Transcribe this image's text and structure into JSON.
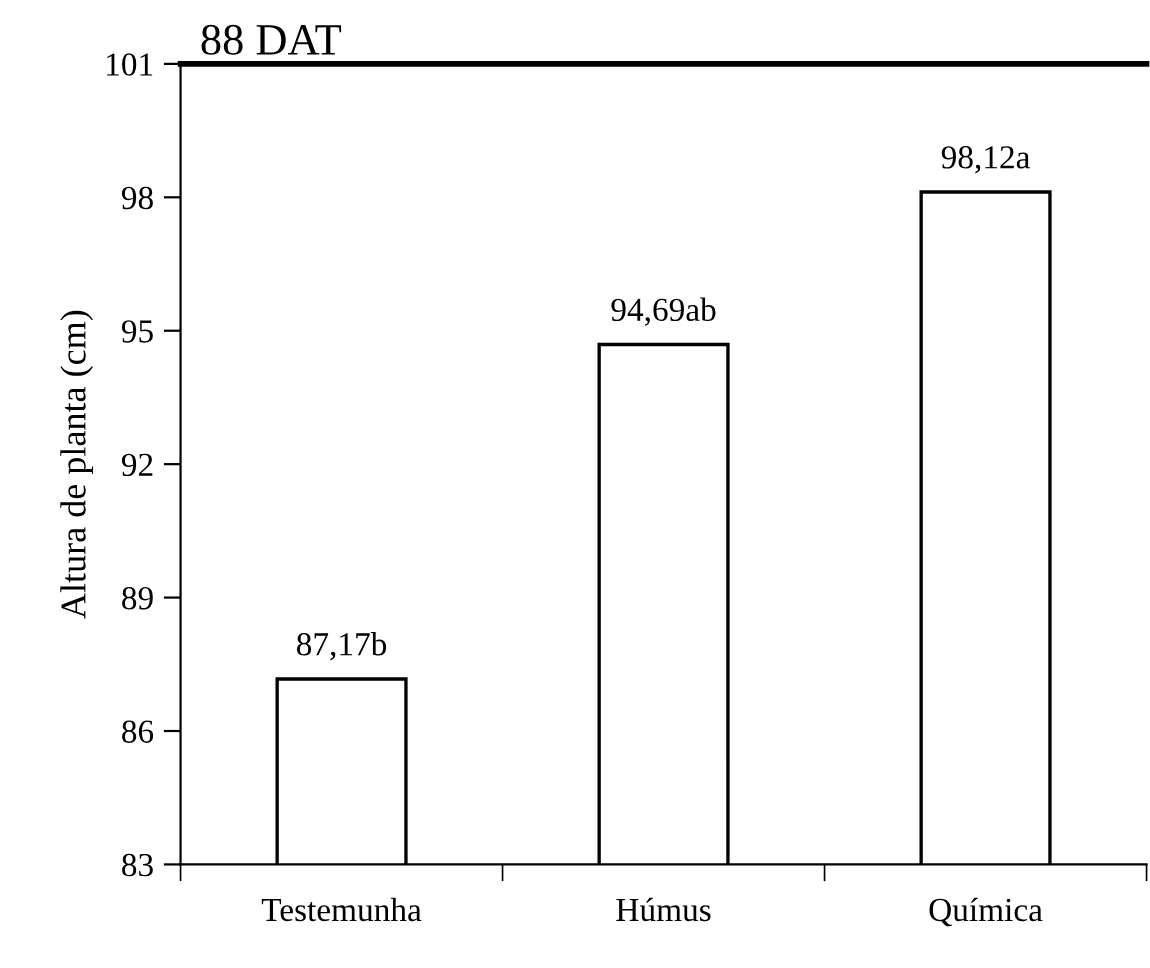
{
  "chart_data": {
    "type": "bar",
    "title": "88 DAT",
    "ylabel": "Altura de planta (cm)",
    "categories": [
      "Testemunha",
      "Húmus",
      "Química"
    ],
    "values": [
      87.17,
      94.69,
      98.12
    ],
    "value_labels": [
      "87,17b",
      "94,69ab",
      "98,12a"
    ],
    "color": "#ffffff",
    "ylim": [
      83,
      101
    ],
    "yticks": [
      83,
      86,
      89,
      92,
      95,
      98,
      101
    ],
    "grid": false,
    "legend": false
  }
}
